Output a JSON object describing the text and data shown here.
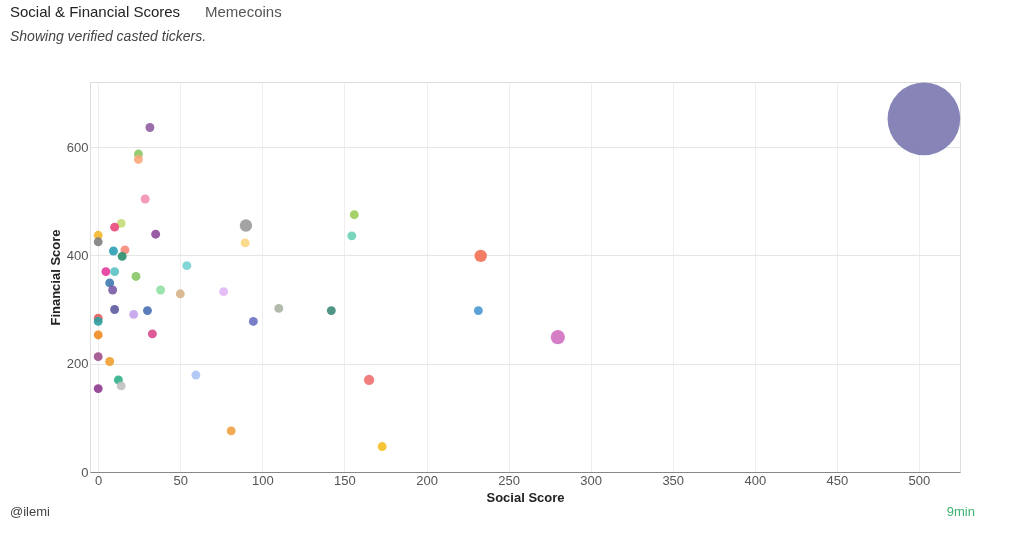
{
  "chart_data": {
    "type": "bubble",
    "title": "Social & Financial Scores",
    "subtitle": "Memecoins",
    "annotations": [
      "Showing verified casted tickers.",
      "@ilemi",
      "9min"
    ],
    "xlabel": "Social Score",
    "ylabel": "Financial Score",
    "xlim": [
      -5,
      525
    ],
    "ylim": [
      0,
      720
    ],
    "xticks": [
      0,
      50,
      100,
      150,
      200,
      250,
      300,
      350,
      400,
      450,
      500
    ],
    "yticks": [
      0,
      200,
      400,
      600
    ],
    "grid": true,
    "legend": false,
    "x": [
      31.5,
      24.5,
      24.5,
      28.6,
      14,
      10,
      35,
      0,
      0,
      90,
      89.5,
      156,
      154.5,
      233,
      9.3,
      16.3,
      14.6,
      54,
      4.7,
      10,
      23,
      7,
      8.8,
      38,
      50,
      76.4,
      10,
      21.6,
      30,
      110,
      142,
      94.5,
      231.6,
      0,
      0,
      33,
      0,
      280,
      0,
      7,
      59.5,
      165,
      12.3,
      14,
      0,
      81,
      173,
      503
    ],
    "values": [
      636,
      587,
      577,
      504,
      459,
      452,
      439,
      437,
      425,
      455,
      423,
      475,
      436,
      399,
      408,
      410,
      398,
      381,
      370,
      370,
      361,
      349,
      336,
      336,
      329,
      333,
      300,
      291,
      298,
      302,
      298,
      278,
      298,
      284,
      278,
      255,
      253,
      249,
      213,
      204,
      179,
      170,
      170,
      159,
      154,
      76,
      47,
      652
    ],
    "sizes": [
      0.015,
      0.015,
      0.015,
      0.015,
      0.015,
      0.015,
      0.015,
      0.015,
      0.015,
      0.029,
      0.015,
      0.015,
      0.015,
      0.029,
      0.015,
      0.015,
      0.015,
      0.015,
      0.015,
      0.015,
      0.015,
      0.015,
      0.015,
      0.015,
      0.015,
      0.015,
      0.015,
      0.015,
      0.015,
      0.015,
      0.015,
      0.015,
      0.015,
      0.015,
      0.015,
      0.015,
      0.015,
      0.038,
      0.015,
      0.015,
      0.015,
      0.02,
      0.015,
      0.015,
      0.015,
      0.015,
      0.015,
      1
    ],
    "colors": [
      "#8e5ea2",
      "#8cc665",
      "#f9a77c",
      "#f48fb1",
      "#c5dc7a",
      "#e84a7a",
      "#8e4c9a",
      "#f5b82e",
      "#808080",
      "#999999",
      "#f9d77e",
      "#9ccc5a",
      "#6cd0b5",
      "#f27052",
      "#2a9fb2",
      "#f8887a",
      "#2a8f6a",
      "#74d1d1",
      "#e6399b",
      "#5bc2c2",
      "#88c767",
      "#3e7ab0",
      "#7b5aa6",
      "#8fe0a3",
      "#d6b38a",
      "#e3b6f5",
      "#5c5aa0",
      "#c3a3ec",
      "#4a6fb5",
      "#aab3a3",
      "#3c8a7a",
      "#6a70c0",
      "#4a98d1",
      "#e06060",
      "#2aa0a0",
      "#d94a8c",
      "#ee8a22",
      "#d070c0",
      "#a0508a",
      "#f0a030",
      "#aac4f5",
      "#f07070",
      "#30b08a",
      "#c0c0c0",
      "#8e3a8e",
      "#f0a040",
      "#f5c020",
      "#7a78b0"
    ]
  }
}
